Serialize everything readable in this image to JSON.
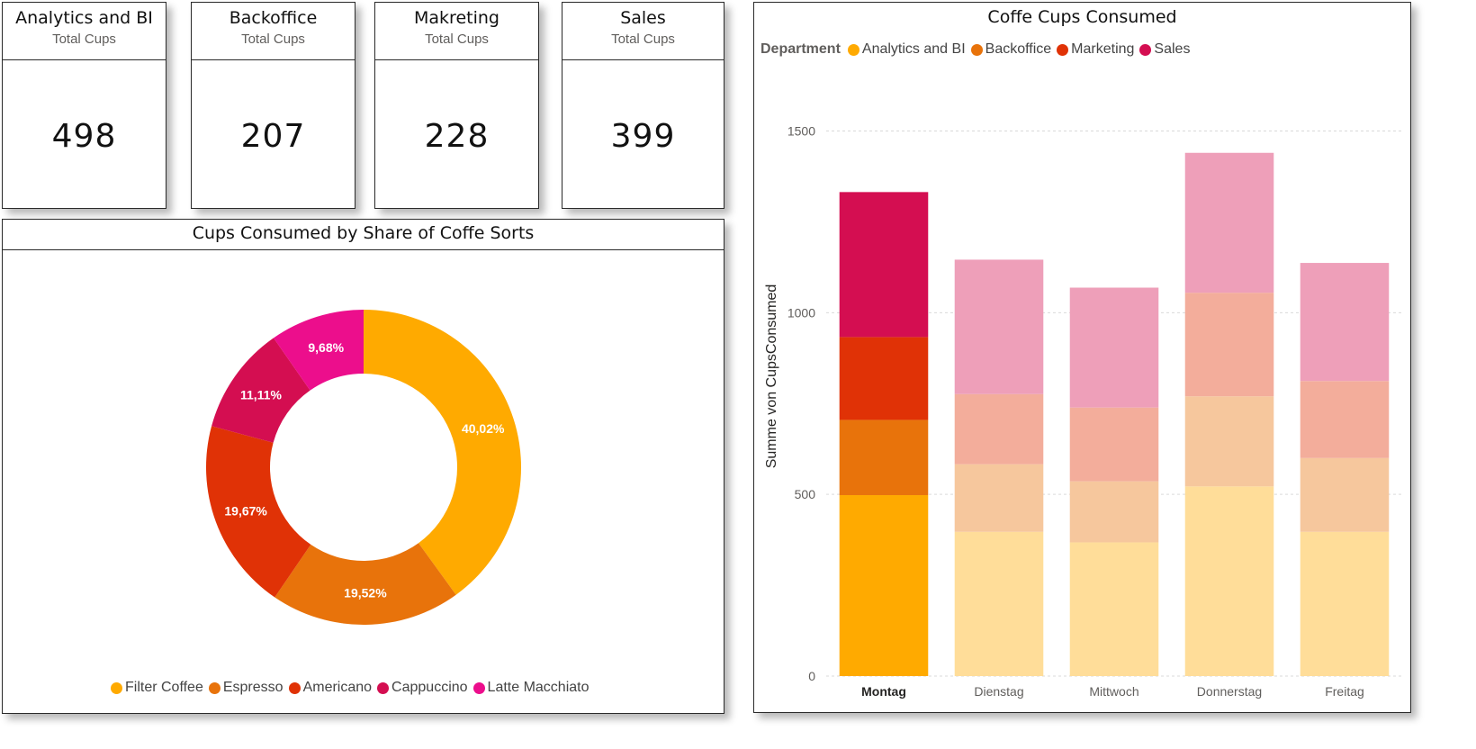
{
  "kpis": [
    {
      "title": "Analytics and BI",
      "subtitle": "Total Cups",
      "value": "498"
    },
    {
      "title": "Backoffice",
      "subtitle": "Total Cups",
      "value": "207"
    },
    {
      "title": "Makreting",
      "subtitle": "Total Cups",
      "value": "228"
    },
    {
      "title": "Sales",
      "subtitle": "Total Cups",
      "value": "399"
    }
  ],
  "chart_data": [
    {
      "type": "pie",
      "title": "Cups Consumed by Share of Coffe Sorts",
      "donut": true,
      "slices": [
        {
          "name": "Filter Coffee",
          "value": 40.02,
          "label": "40,02%",
          "color": "#FFAA00"
        },
        {
          "name": "Espresso",
          "value": 19.52,
          "label": "19,52%",
          "color": "#E8730B"
        },
        {
          "name": "Americano",
          "value": 19.67,
          "label": "19,67%",
          "color": "#E03206"
        },
        {
          "name": "Cappuccino",
          "value": 11.11,
          "label": "11,11%",
          "color": "#D40E51"
        },
        {
          "name": "Latte Macchiato",
          "value": 9.68,
          "label": "9,68%",
          "color": "#EC0E8C"
        }
      ],
      "legend_placement": "bottom"
    },
    {
      "type": "bar",
      "stacked": true,
      "title": "Coffe Cups Consumed",
      "legend_title": "Department",
      "legend_placement": "top-left",
      "xlabel": "",
      "ylabel": "Summe von CupsConsumed",
      "ylim": [
        0,
        1650
      ],
      "yticks": [
        0,
        500,
        1000,
        1500
      ],
      "grid": true,
      "categories": [
        "Montag",
        "Dienstag",
        "Mittwoch",
        "Donnerstag",
        "Freitag"
      ],
      "highlighted_category": "Montag",
      "series": [
        {
          "name": "Analytics and BI",
          "color": "#FFAA00",
          "values": [
            498,
            397,
            368,
            522,
            397
          ]
        },
        {
          "name": "Backoffice",
          "color": "#E8730B",
          "values": [
            207,
            186,
            168,
            248,
            203
          ]
        },
        {
          "name": "Marketing",
          "color": "#E03206",
          "values": [
            228,
            193,
            203,
            285,
            212
          ]
        },
        {
          "name": "Sales",
          "color": "#D40E51",
          "values": [
            399,
            370,
            330,
            385,
            325
          ]
        }
      ]
    }
  ]
}
